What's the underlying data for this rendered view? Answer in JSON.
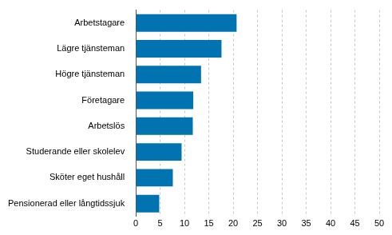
{
  "chart_data": {
    "type": "bar",
    "orientation": "horizontal",
    "categories": [
      "Arbetstagare",
      "Lägre tjänsteman",
      "Högre tjänsteman",
      "Företagare",
      "Arbetslös",
      "Studerande eller skolelev",
      "Sköter eget hushåll",
      "Pensionerad eller långtidssjuk"
    ],
    "values": [
      20.7,
      17.6,
      13.4,
      11.8,
      11.7,
      9.4,
      7.6,
      4.8
    ],
    "color": "#0073b0",
    "xlim": [
      0,
      50
    ],
    "xticks": [
      0,
      5,
      10,
      15,
      20,
      25,
      30,
      35,
      40,
      45,
      50
    ],
    "grid": true
  }
}
